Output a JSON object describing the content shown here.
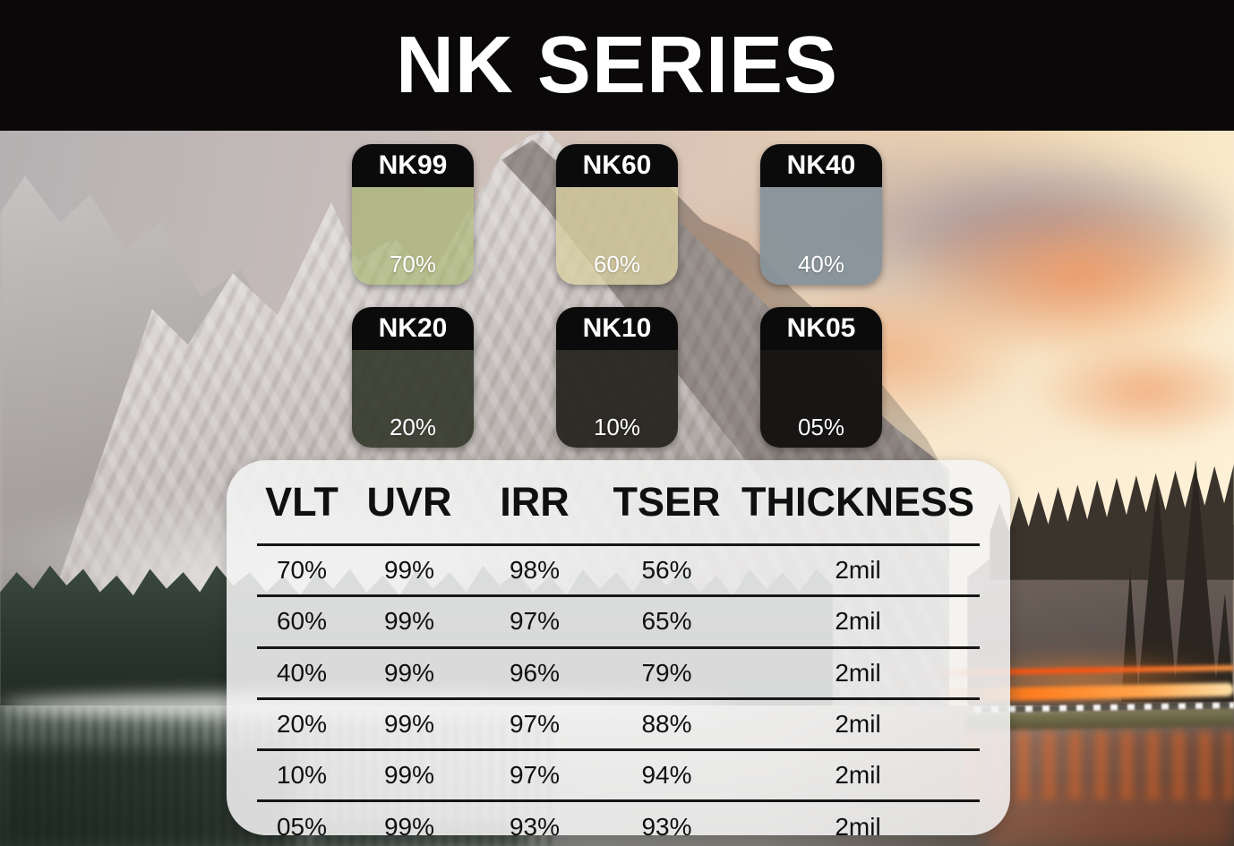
{
  "title_bar": {
    "title": "NK SERIES",
    "bg_color": "#0b0809",
    "text_color": "#ffffff"
  },
  "swatches": [
    {
      "label": "NK99",
      "vlt": "70%",
      "body_color": "rgba(160,178,96,0.55)"
    },
    {
      "label": "NK60",
      "vlt": "60%",
      "body_color": "rgba(216,208,160,0.78)"
    },
    {
      "label": "NK40",
      "vlt": "40%",
      "body_color": "rgba(134,147,154,0.94)"
    },
    {
      "label": "NK20",
      "vlt": "20%",
      "body_color": "rgba(47,51,37,0.88)"
    },
    {
      "label": "NK10",
      "vlt": "10%",
      "body_color": "rgba(41,39,33,0.96)"
    },
    {
      "label": "NK05",
      "vlt": "05%",
      "body_color": "rgba(21,19,18,0.98)"
    }
  ],
  "spec_table": {
    "columns": [
      "VLT",
      "UVR",
      "IRR",
      "TSER",
      "THICKNESS"
    ],
    "rows": [
      [
        "70%",
        "99%",
        "98%",
        "56%",
        "2mil"
      ],
      [
        "60%",
        "99%",
        "97%",
        "65%",
        "2mil"
      ],
      [
        "40%",
        "99%",
        "96%",
        "79%",
        "2mil"
      ],
      [
        "20%",
        "99%",
        "97%",
        "88%",
        "2mil"
      ],
      [
        "10%",
        "99%",
        "97%",
        "94%",
        "2mil"
      ],
      [
        "05%",
        "99%",
        "93%",
        "93%",
        "2mil"
      ]
    ]
  }
}
